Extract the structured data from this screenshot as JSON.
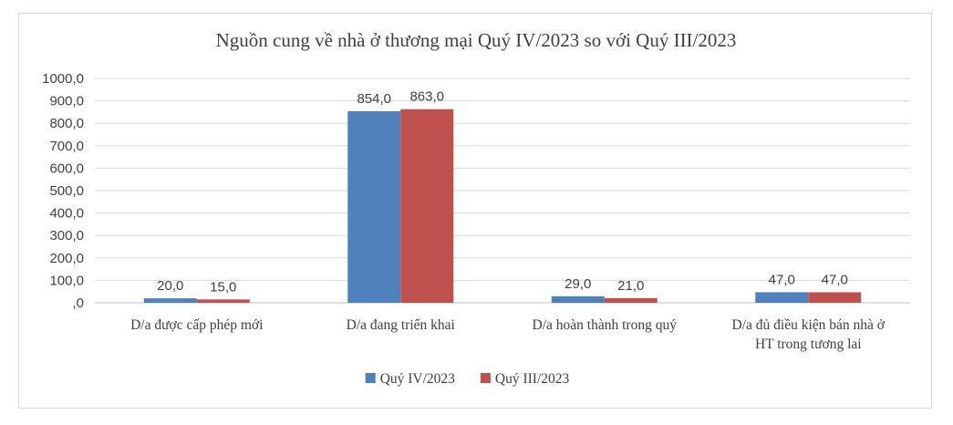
{
  "chart_data": {
    "type": "bar",
    "title": "Nguồn cung về nhà ở thương mại Quý IV/2023 so với Quý III/2023",
    "categories": [
      [
        "D/a được cấp phép mới"
      ],
      [
        "D/a đang triển khai"
      ],
      [
        "D/a hoàn thành trong quý"
      ],
      [
        "D/a đủ điều kiện bán nhà ở",
        "HT trong tương lai"
      ]
    ],
    "series": [
      {
        "name": "Quý IV/2023",
        "color": "#4f81bd",
        "values": [
          20.0,
          854.0,
          29.0,
          47.0
        ],
        "labels": [
          "20,0",
          "854,0",
          "29,0",
          "47,0"
        ]
      },
      {
        "name": "Quý III/2023",
        "color": "#c0504d",
        "values": [
          15.0,
          863.0,
          21.0,
          47.0
        ],
        "labels": [
          "15,0",
          "863,0",
          "21,0",
          "47,0"
        ]
      }
    ],
    "ylim": [
      0,
      1000
    ],
    "yticks": [
      0,
      100,
      200,
      300,
      400,
      500,
      600,
      700,
      800,
      900,
      1000
    ],
    "ytick_labels": [
      ",0",
      "100,0",
      "200,0",
      "300,0",
      "400,0",
      "500,0",
      "600,0",
      "700,0",
      "800,0",
      "900,0",
      "1000,0"
    ],
    "xlabel": "",
    "ylabel": "",
    "grid": true,
    "legend_position": "bottom"
  }
}
